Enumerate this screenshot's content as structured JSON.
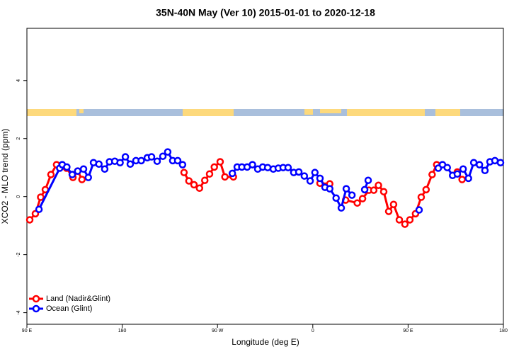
{
  "chart_data": {
    "type": "line",
    "title": "35N-40N May (Ver 10)   2015-01-01 to 2020-12-18",
    "x_label": "Longitude (deg E)",
    "y_label": "XCO2 - MLO trend (ppm)",
    "xlim": [
      90,
      540
    ],
    "xticks": [
      {
        "value": 90,
        "label": "90 E"
      },
      180,
      {
        "value": 270,
        "label": "90 W"
      },
      {
        "value": 360,
        "label": "0"
      },
      {
        "value": 450,
        "label": "90 E"
      },
      {
        "value": 540,
        "label": "180"
      }
    ],
    "ylim": [
      -4.4,
      5.8
    ],
    "yticks": [
      -4,
      -2,
      0,
      2,
      4
    ],
    "legend": "bottomleft",
    "series": [
      {
        "name": "Land (Nadir&Glint)",
        "color": "#ff0000",
        "x": [
          92.7,
          98,
          103,
          107.4,
          112.7,
          118,
          127.4,
          133.5,
          138,
          142,
          null,
          238.4,
          243,
          247.8,
          253,
          258,
          262.5,
          267,
          272.5,
          277,
          285,
          null,
          366.8,
          376,
          null,
          391,
          402,
          407,
          413,
          417.6,
          422,
          427,
          431.7,
          436.3,
          441.7,
          447,
          451.7,
          457,
          462.4,
          467,
          472.7,
          477,
          null,
          496.5,
          501
        ],
        "values": [
          -0.8,
          -0.59,
          -0.02,
          0.24,
          0.76,
          1.1,
          0.98,
          0.66,
          0.88,
          0.59,
          null,
          0.83,
          0.54,
          0.41,
          0.29,
          0.56,
          0.78,
          1.02,
          1.2,
          0.68,
          0.68,
          null,
          0.46,
          0.44,
          null,
          -0.12,
          -0.22,
          -0.07,
          0.22,
          0.22,
          0.39,
          0.17,
          -0.51,
          -0.27,
          -0.8,
          -0.95,
          -0.8,
          -0.59,
          -0.02,
          0.24,
          0.76,
          1.1,
          null,
          0.85,
          0.59
        ]
      },
      {
        "name": "Ocean (Glint)",
        "color": "#0000ff",
        "x": [
          101.4,
          121,
          123.4,
          127.7,
          132.8,
          138,
          143.5,
          148,
          152.9,
          158,
          163.5,
          168,
          173,
          178,
          183,
          187.6,
          193,
          198,
          203.7,
          207.7,
          213,
          218.4,
          223,
          227.7,
          232.4,
          237,
          null,
          284,
          288.6,
          293,
          298,
          303,
          308,
          312.7,
          317.4,
          322.7,
          327.4,
          332,
          336.7,
          342,
          346.8,
          352,
          357.5,
          362,
          366.8,
          371.5,
          376,
          382,
          386.9,
          391.6,
          397,
          null,
          409,
          412.3,
          null,
          460.4,
          null,
          478.5,
          482.5,
          487,
          492,
          496.5,
          502,
          507,
          512,
          517.4,
          522.6,
          527.3,
          532,
          537.3
        ],
        "values": [
          -0.44,
          0.98,
          1.1,
          1.02,
          0.76,
          0.88,
          0.95,
          0.66,
          1.17,
          1.12,
          0.95,
          1.2,
          1.22,
          1.17,
          1.37,
          1.12,
          1.24,
          1.24,
          1.34,
          1.37,
          1.22,
          1.39,
          1.54,
          1.24,
          1.24,
          1.1,
          null,
          0.8,
          1.02,
          1.02,
          1.02,
          1.1,
          0.95,
          1.02,
          1.0,
          0.95,
          0.98,
          1.0,
          1.0,
          0.83,
          0.85,
          0.71,
          0.54,
          0.83,
          0.63,
          0.32,
          0.27,
          -0.05,
          -0.39,
          0.27,
          0.05,
          null,
          0.24,
          0.56,
          null,
          -0.46,
          null,
          0.98,
          1.1,
          1.0,
          0.73,
          0.78,
          0.95,
          0.63,
          1.17,
          1.1,
          0.9,
          1.2,
          1.24,
          1.17
        ]
      }
    ]
  }
}
